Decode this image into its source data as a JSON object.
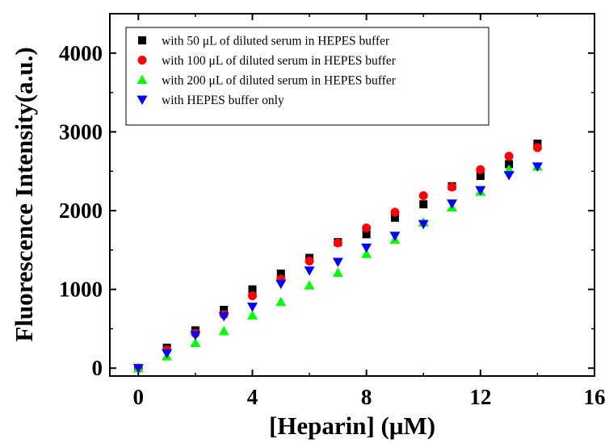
{
  "chart_data": {
    "type": "scatter",
    "xlabel": "[Heparin] (μM)",
    "ylabel": "Fluorescence Intensity(a.u.)",
    "xlim": [
      -1,
      16
    ],
    "ylim": [
      -100,
      4500
    ],
    "xticks": [
      0,
      4,
      8,
      12,
      16
    ],
    "yticks": [
      0,
      1000,
      2000,
      3000,
      4000
    ],
    "legend_position": "top-left",
    "grid": false,
    "series": [
      {
        "name": "with  50 μL of diluted serum in HEPES buffer",
        "marker": "square",
        "color": "#000000",
        "x": [
          0,
          1,
          2,
          3,
          4,
          5,
          6,
          7,
          8,
          9,
          10,
          11,
          12,
          13,
          14
        ],
        "y": [
          0,
          260,
          480,
          740,
          1000,
          1200,
          1400,
          1600,
          1700,
          1910,
          2080,
          2310,
          2440,
          2590,
          2850
        ]
      },
      {
        "name": "with 100 μL of diluted serum in HEPES buffer",
        "marker": "circle",
        "color": "#ff0000",
        "x": [
          0,
          1,
          2,
          3,
          4,
          5,
          6,
          7,
          8,
          9,
          10,
          11,
          12,
          13,
          14
        ],
        "y": [
          0,
          230,
          440,
          680,
          920,
          1130,
          1360,
          1590,
          1780,
          1980,
          2190,
          2300,
          2520,
          2690,
          2800
        ]
      },
      {
        "name": "with 200 μL of diluted serum in HEPES buffer",
        "marker": "triangle-up",
        "color": "#00ff00",
        "x": [
          0,
          1,
          2,
          3,
          4,
          5,
          6,
          7,
          8,
          9,
          10,
          11,
          12,
          13,
          14
        ],
        "y": [
          0,
          150,
          320,
          470,
          670,
          840,
          1050,
          1210,
          1450,
          1630,
          1850,
          2040,
          2240,
          2520,
          2560
        ]
      },
      {
        "name": "with HEPES buffer  only",
        "marker": "triangle-down",
        "color": "#0000ff",
        "x": [
          0,
          1,
          2,
          3,
          4,
          5,
          6,
          7,
          8,
          9,
          10,
          11,
          12,
          13,
          14
        ],
        "y": [
          0,
          190,
          420,
          660,
          780,
          1070,
          1240,
          1350,
          1530,
          1680,
          1830,
          2090,
          2260,
          2450,
          2560
        ]
      }
    ]
  }
}
